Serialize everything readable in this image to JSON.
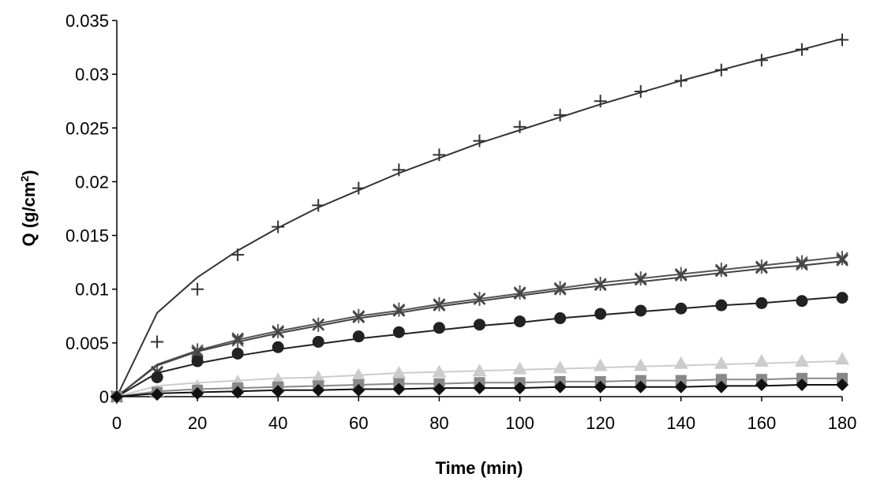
{
  "chart_data": {
    "type": "scatter",
    "title": "",
    "xlabel": "Time (min)",
    "ylabel_main": "Q (g/cm",
    "ylabel_sup": "2",
    "ylabel_close": ")",
    "xlim": [
      0,
      180
    ],
    "ylim": [
      0,
      0.035
    ],
    "x_ticks": [
      0,
      20,
      40,
      60,
      80,
      100,
      120,
      140,
      160,
      180
    ],
    "y_ticks": [
      0,
      0.005,
      0.01,
      0.015,
      0.02,
      0.025,
      0.03,
      0.035
    ],
    "y_tick_labels": [
      "0",
      "0.005",
      "0.01",
      "0.015",
      "0.02",
      "0.025",
      "0.03",
      "0.035"
    ],
    "grid": false,
    "x": [
      0,
      10,
      20,
      30,
      40,
      50,
      60,
      70,
      80,
      90,
      100,
      110,
      120,
      130,
      140,
      150,
      160,
      170,
      180
    ],
    "series": [
      {
        "name": "plus",
        "marker": "plus",
        "color": "#333333",
        "values": [
          0,
          0.0051,
          0.01,
          0.0132,
          0.0158,
          0.0178,
          0.0194,
          0.0211,
          0.0225,
          0.0238,
          0.0251,
          0.0262,
          0.0275,
          0.0284,
          0.0294,
          0.0304,
          0.0313,
          0.0323,
          0.0332
        ],
        "fit": [
          0,
          0.0078,
          0.0111,
          0.0136,
          0.0157,
          0.0176,
          0.0192,
          0.0208,
          0.0222,
          0.0236,
          0.0248,
          0.026,
          0.0272,
          0.0283,
          0.0294,
          0.0304,
          0.0314,
          0.0323,
          0.0333
        ]
      },
      {
        "name": "star",
        "marker": "star",
        "color": "#555555",
        "values": [
          0,
          0.0022,
          0.0043,
          0.0052,
          0.0061,
          0.0067,
          0.0075,
          0.0081,
          0.0086,
          0.0091,
          0.0097,
          0.0101,
          0.0105,
          0.011,
          0.0114,
          0.0118,
          0.0121,
          0.0125,
          0.0129
        ],
        "fit": [
          0,
          0.003,
          0.0043,
          0.0053,
          0.0061,
          0.0068,
          0.0075,
          0.008,
          0.0086,
          0.0091,
          0.0096,
          0.0101,
          0.0106,
          0.011,
          0.0114,
          0.0118,
          0.0122,
          0.0126,
          0.013
        ]
      },
      {
        "name": "x-cross",
        "marker": "x",
        "color": "#444444",
        "values": [
          0,
          0.0023,
          0.0041,
          0.0054,
          0.006,
          0.0067,
          0.0074,
          0.008,
          0.0085,
          0.0091,
          0.0096,
          0.01,
          0.0104,
          0.0109,
          0.0113,
          0.0117,
          0.012,
          0.0123,
          0.0127
        ],
        "fit": [
          0,
          0.0029,
          0.0042,
          0.0051,
          0.0059,
          0.0066,
          0.0073,
          0.0078,
          0.0084,
          0.0089,
          0.0094,
          0.0099,
          0.0103,
          0.0107,
          0.0111,
          0.0115,
          0.0119,
          0.0122,
          0.0126
        ]
      },
      {
        "name": "circle",
        "marker": "circle",
        "color": "#222222",
        "values": [
          0,
          0.0018,
          0.0033,
          0.004,
          0.0046,
          0.0051,
          0.0056,
          0.006,
          0.0064,
          0.0067,
          0.007,
          0.0073,
          0.0077,
          0.008,
          0.0082,
          0.0085,
          0.0087,
          0.0089,
          0.0092
        ],
        "fit": [
          0,
          0.0022,
          0.0031,
          0.0038,
          0.0044,
          0.0049,
          0.0054,
          0.0058,
          0.0062,
          0.0066,
          0.0069,
          0.0073,
          0.0076,
          0.0079,
          0.0082,
          0.0085,
          0.0087,
          0.009,
          0.0093
        ]
      },
      {
        "name": "triangle",
        "marker": "triangle",
        "color": "#cccccc",
        "values": [
          0,
          0.0005,
          0.001,
          0.0014,
          0.0016,
          0.0018,
          0.002,
          0.0022,
          0.0023,
          0.0024,
          0.0026,
          0.0027,
          0.0029,
          0.0029,
          0.0031,
          0.0031,
          0.0033,
          0.0033,
          0.0035
        ],
        "fit": [
          0,
          0.001,
          0.0013,
          0.0015,
          0.0017,
          0.0018,
          0.002,
          0.0022,
          0.0023,
          0.0024,
          0.0025,
          0.0026,
          0.0027,
          0.0028,
          0.0029,
          0.003,
          0.0031,
          0.0032,
          0.0033
        ]
      },
      {
        "name": "square",
        "marker": "square",
        "color": "#888888",
        "values": [
          0,
          0.0004,
          0.0006,
          0.0008,
          0.0009,
          0.001,
          0.0011,
          0.0012,
          0.0012,
          0.0013,
          0.0013,
          0.0014,
          0.0014,
          0.0015,
          0.0015,
          0.0016,
          0.0016,
          0.0017,
          0.0017
        ],
        "fit": [
          0,
          0.0005,
          0.0007,
          0.0008,
          0.0009,
          0.001,
          0.0011,
          0.0012,
          0.0012,
          0.0013,
          0.0013,
          0.0014,
          0.0014,
          0.0015,
          0.0015,
          0.0016,
          0.0016,
          0.0017,
          0.0017
        ]
      },
      {
        "name": "diamond",
        "marker": "diamond",
        "color": "#111111",
        "values": [
          0,
          0.0002,
          0.0003,
          0.0004,
          0.0005,
          0.0006,
          0.0006,
          0.0007,
          0.0007,
          0.0008,
          0.0008,
          0.0009,
          0.0009,
          0.0009,
          0.0009,
          0.0009,
          0.0011,
          0.0011,
          0.0011
        ],
        "fit": [
          0,
          0.0003,
          0.0004,
          0.0005,
          0.0006,
          0.0006,
          0.0007,
          0.0007,
          0.0008,
          0.0008,
          0.0008,
          0.0009,
          0.0009,
          0.0009,
          0.0009,
          0.001,
          0.001,
          0.0011,
          0.0011
        ]
      }
    ]
  }
}
